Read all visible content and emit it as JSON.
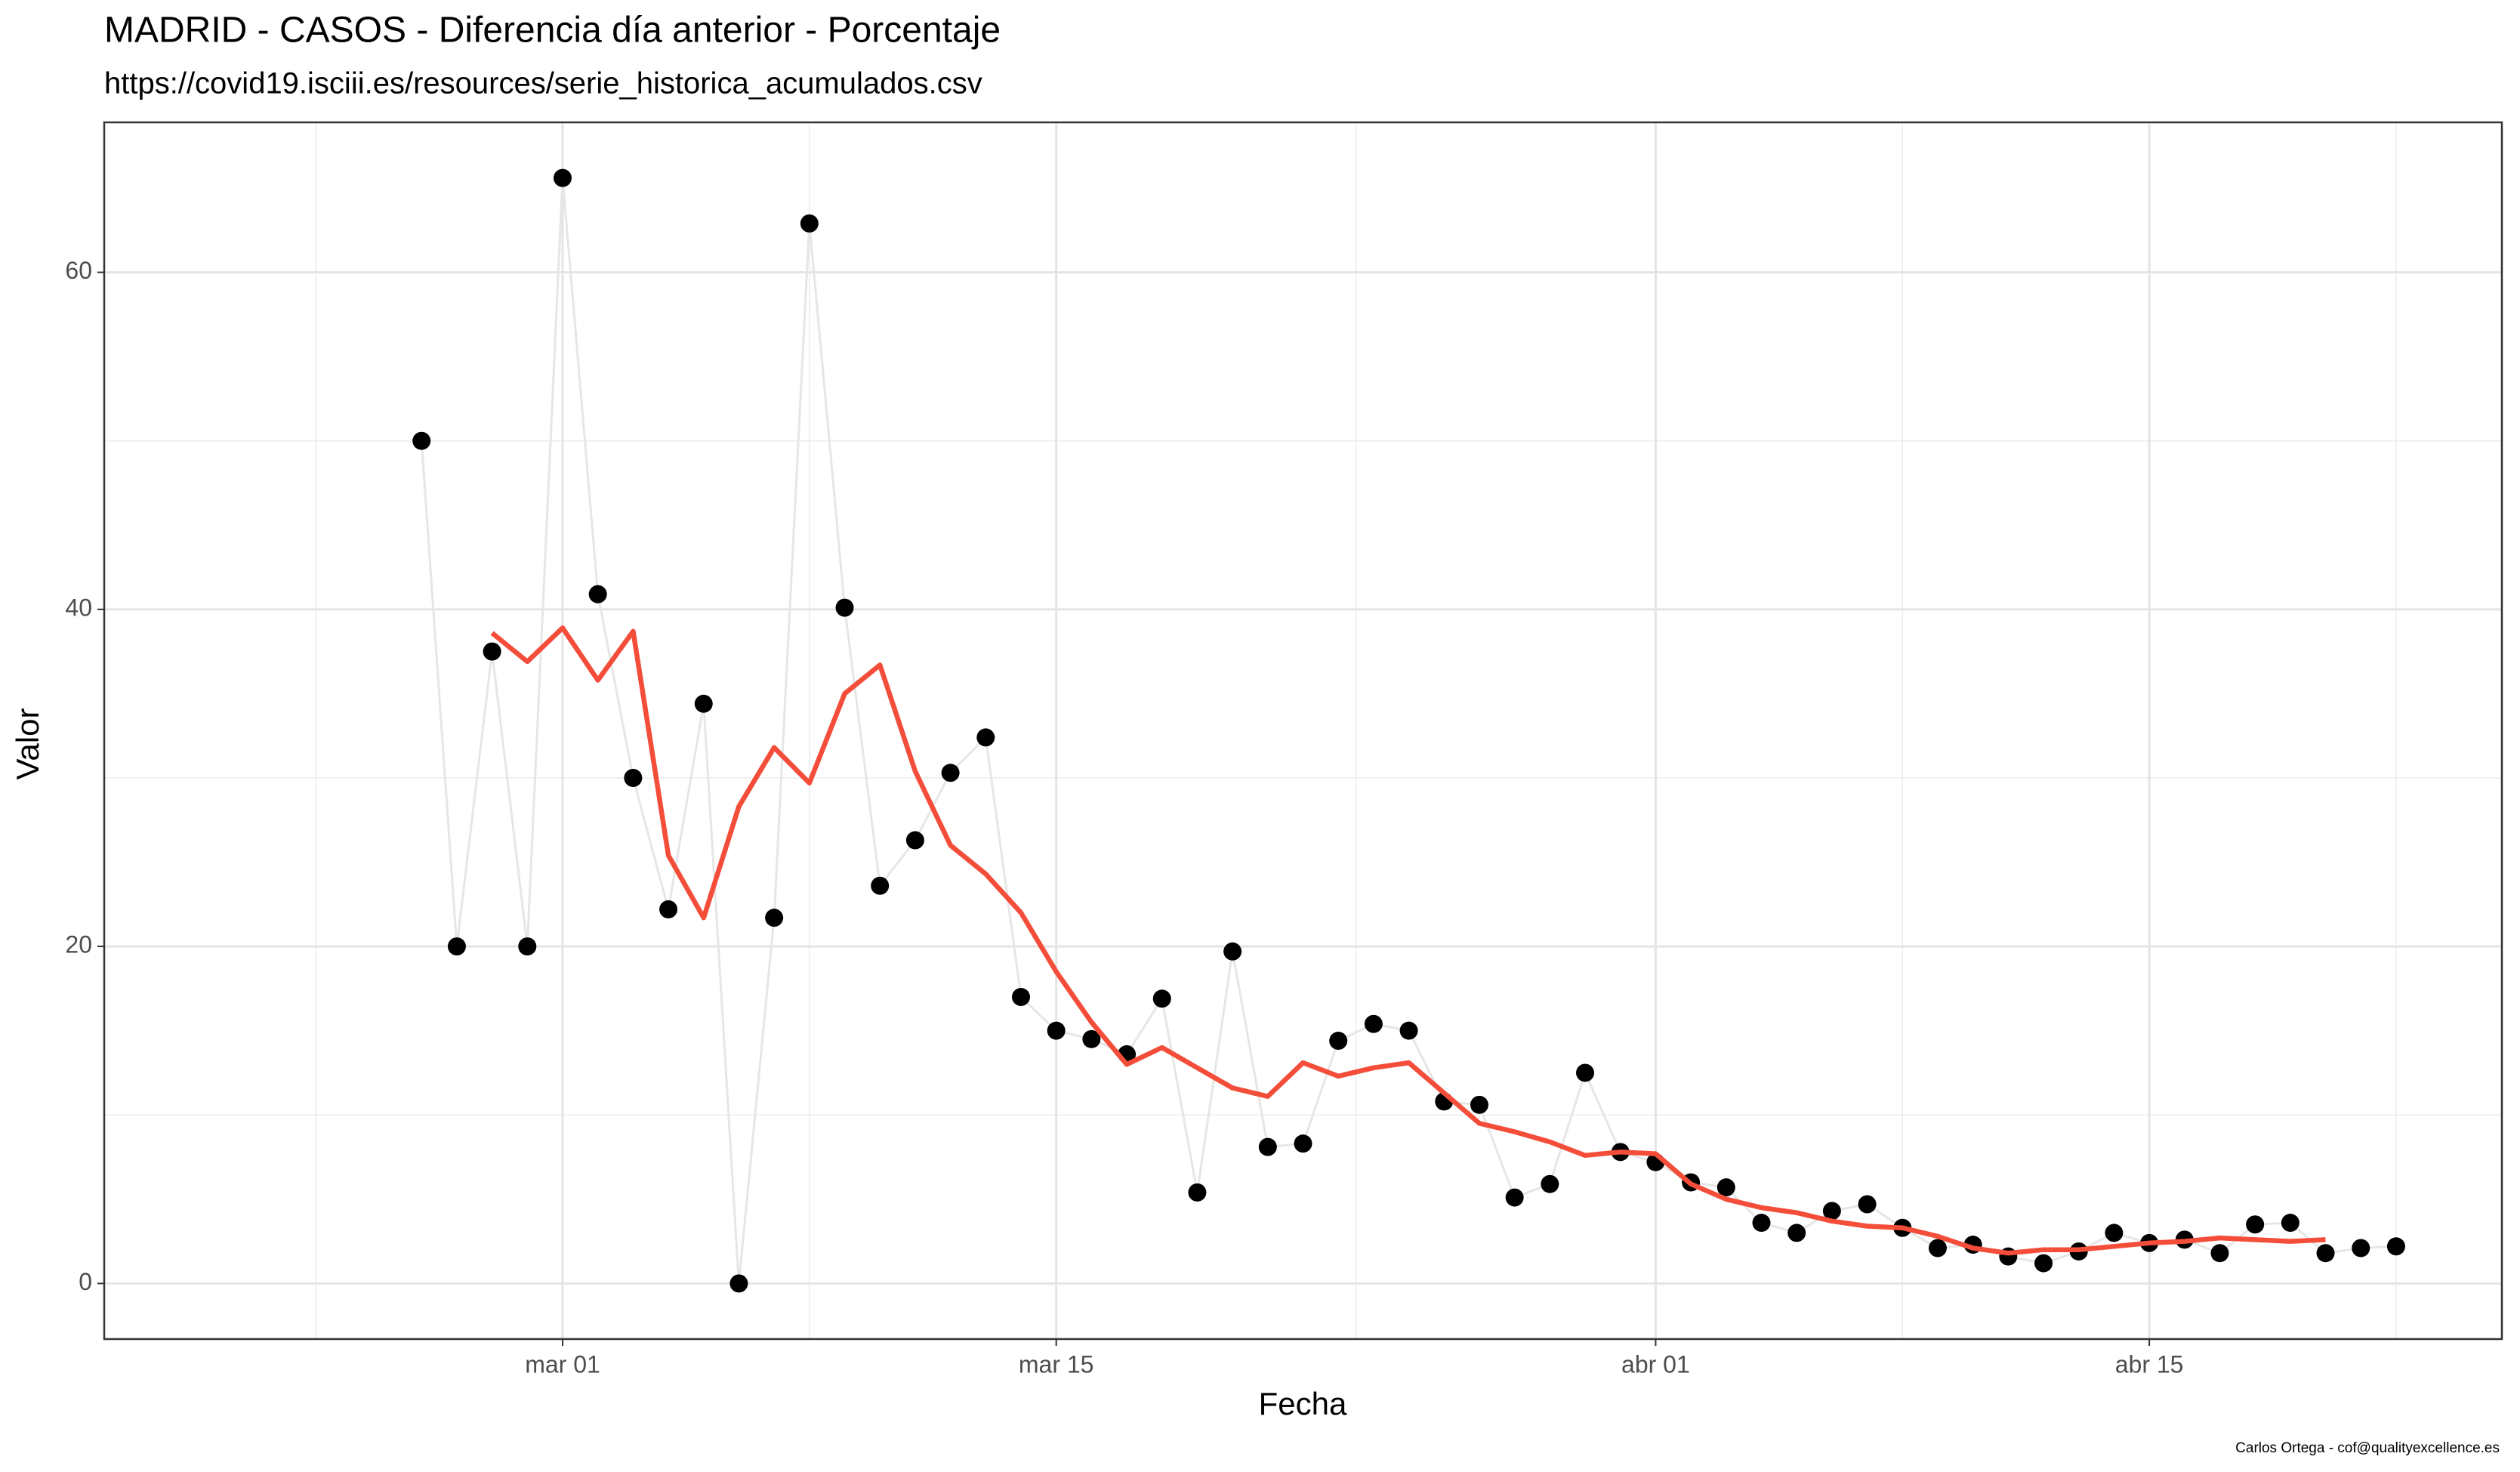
{
  "chart_data": {
    "type": "line",
    "title": "MADRID - CASOS - Diferencia día anterior - Porcentaje",
    "subtitle": "https://covid19.isciii.es/resources/serie_historica_acumulados.csv",
    "x_label": "Fecha",
    "y_label": "Valor",
    "caption": "Carlos Ortega - cof@qualityexcellence.es",
    "x": [
      "feb 26",
      "feb 27",
      "feb 28",
      "feb 29",
      "mar 01",
      "mar 02",
      "mar 03",
      "mar 04",
      "mar 05",
      "mar 06",
      "mar 07",
      "mar 08",
      "mar 09",
      "mar 10",
      "mar 11",
      "mar 12",
      "mar 13",
      "mar 14",
      "mar 15",
      "mar 16",
      "mar 17",
      "mar 18",
      "mar 19",
      "mar 20",
      "mar 21",
      "mar 22",
      "mar 23",
      "mar 24",
      "mar 25",
      "mar 26",
      "mar 27",
      "mar 28",
      "mar 29",
      "mar 30",
      "mar 31",
      "abr 01",
      "abr 02",
      "abr 03",
      "abr 04",
      "abr 05",
      "abr 06",
      "abr 07",
      "abr 08",
      "abr 09",
      "abr 10",
      "abr 11",
      "abr 12",
      "abr 13",
      "abr 14",
      "abr 15",
      "abr 16",
      "abr 17",
      "abr 18",
      "abr 19",
      "abr 20",
      "abr 21",
      "abr 22"
    ],
    "values": [
      50,
      20,
      37.5,
      20,
      65.6,
      40.9,
      30,
      22.2,
      34.4,
      0,
      21.7,
      62.9,
      40.1,
      23.6,
      26.3,
      30.3,
      32.4,
      17.0,
      15.0,
      14.5,
      13.6,
      16.9,
      5.4,
      19.7,
      8.1,
      8.3,
      14.4,
      15.4,
      15.0,
      10.8,
      10.6,
      5.1,
      5.9,
      12.5,
      7.8,
      7.2,
      6.0,
      5.7,
      3.6,
      3.0,
      4.3,
      4.7,
      3.3,
      2.1,
      2.3,
      1.6,
      1.2,
      1.9,
      3.0,
      2.4,
      2.6,
      1.8,
      3.5,
      3.6,
      1.8,
      2.1,
      2.2
    ],
    "smoothed_values": [
      null,
      null,
      38.6,
      36.9,
      38.9,
      35.8,
      38.7,
      25.4,
      21.7,
      28.3,
      31.8,
      29.7,
      35.0,
      36.7,
      30.4,
      26.0,
      24.3,
      22.0,
      18.5,
      15.5,
      13.0,
      14.0,
      12.8,
      11.6,
      11.1,
      13.1,
      12.3,
      12.8,
      13.1,
      11.3,
      9.5,
      9.0,
      8.4,
      7.6,
      7.8,
      7.7,
      5.9,
      5.0,
      4.5,
      4.2,
      3.7,
      3.4,
      3.3,
      2.8,
      2.1,
      1.8,
      2.0,
      2.0,
      2.2,
      2.4,
      2.5,
      2.7,
      2.6,
      2.5,
      2.6,
      null,
      null
    ],
    "point_color": "#000000",
    "line_color": "#e6e6e6",
    "smoothed_color": "#f44d3a",
    "xlim": [
      "feb 17",
      "abr 25"
    ],
    "xticks": [
      "mar 01",
      "mar 15",
      "abr 01",
      "abr 15"
    ],
    "ylim": [
      -3.3,
      68.9
    ],
    "yticks": [
      0,
      20,
      40,
      60
    ],
    "grid": true
  }
}
